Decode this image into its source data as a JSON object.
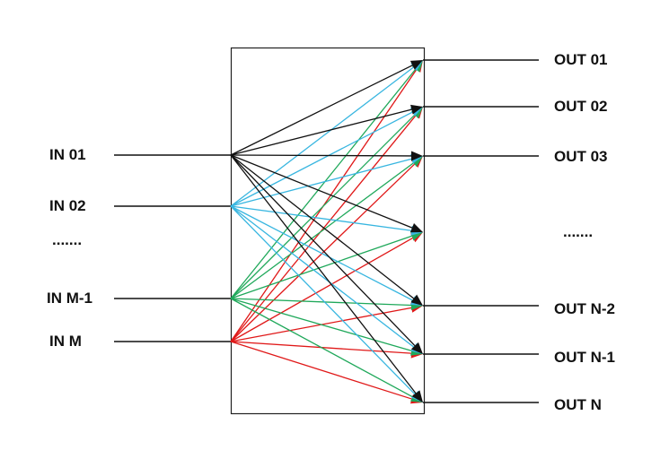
{
  "inputs": [
    {
      "label": "IN 01",
      "color": "#111111"
    },
    {
      "label": "IN 02",
      "color": "#38b6e0"
    },
    {
      "label": "IN M-1",
      "color": "#1fa85a"
    },
    {
      "label": "IN M",
      "color": "#e01818"
    }
  ],
  "input_ellipsis": ".......",
  "outputs": [
    {
      "label": "OUT 01"
    },
    {
      "label": "OUT 02"
    },
    {
      "label": "OUT 03"
    },
    {
      "label": ""
    },
    {
      "label": "OUT N-2"
    },
    {
      "label": "OUT N-1"
    },
    {
      "label": "OUT N"
    }
  ],
  "output_ellipsis": ".......",
  "box_color": "#222222"
}
